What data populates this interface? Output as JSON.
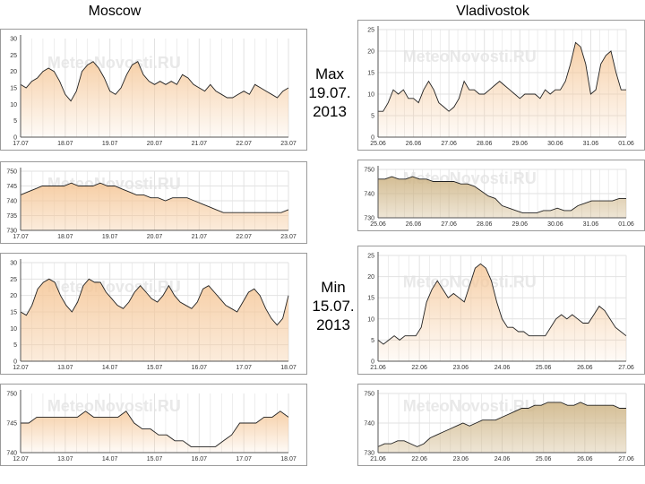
{
  "header": {
    "left_city": "Moscow",
    "right_city": "Vladivostok"
  },
  "labels": {
    "max": [
      "Max",
      "19.07.",
      "2013"
    ],
    "min": [
      "Min",
      "15.07.",
      "2013"
    ]
  },
  "watermark": "MeteoNovosti.RU",
  "colors": {
    "fill_warm": "#f5c89a",
    "fill_tan": "#cfb688",
    "line": "#222222",
    "grid": "#e2e2e2"
  },
  "chart_data": [
    {
      "id": "moscow-max-temp",
      "type": "area",
      "xticks": [
        "17.07",
        "18.07",
        "19.07",
        "20.07",
        "21.07",
        "22.07",
        "23.07"
      ],
      "yticks": [
        0,
        5,
        10,
        15,
        20,
        25,
        30
      ],
      "ylim": [
        0,
        30
      ],
      "values": [
        16,
        15,
        17,
        18,
        20,
        21,
        20,
        17,
        13,
        11,
        14,
        20,
        22,
        23,
        21,
        18,
        14,
        13,
        15,
        19,
        22,
        23,
        19,
        17,
        16,
        17,
        16,
        17,
        16,
        19,
        18,
        16,
        15,
        14,
        16,
        14,
        13,
        12,
        12,
        13,
        14,
        13,
        16,
        15,
        14,
        13,
        12,
        14,
        15
      ]
    },
    {
      "id": "moscow-max-pressure",
      "type": "area",
      "xticks": [
        "17.07",
        "18.07",
        "19.07",
        "20.07",
        "21.07",
        "22.07",
        "23.07"
      ],
      "yticks": [
        730,
        735,
        740,
        745,
        750
      ],
      "ylim": [
        730,
        750
      ],
      "values": [
        742,
        743,
        744,
        745,
        745,
        745,
        745,
        746,
        745,
        745,
        745,
        746,
        745,
        745,
        744,
        743,
        742,
        742,
        741,
        741,
        740,
        741,
        741,
        741,
        740,
        739,
        738,
        737,
        736,
        736,
        736,
        736,
        736,
        736,
        736,
        736,
        736,
        737
      ]
    },
    {
      "id": "vladivostok-max-temp",
      "type": "area",
      "xticks": [
        "25.06",
        "26.06",
        "27.06",
        "28.06",
        "29.06",
        "30.06",
        "31.06",
        "01.06"
      ],
      "yticks": [
        0,
        5,
        10,
        15,
        20,
        25
      ],
      "ylim": [
        0,
        25
      ],
      "values": [
        6,
        6,
        8,
        11,
        10,
        11,
        9,
        9,
        8,
        11,
        13,
        11,
        8,
        7,
        6,
        7,
        9,
        13,
        11,
        11,
        10,
        10,
        11,
        12,
        13,
        12,
        11,
        10,
        9,
        10,
        10,
        10,
        9,
        11,
        10,
        11,
        11,
        13,
        17,
        22,
        21,
        17,
        10,
        11,
        17,
        19,
        20,
        15,
        11,
        11
      ]
    },
    {
      "id": "vladivostok-max-pressure",
      "type": "area",
      "xticks": [
        "25.06",
        "26.06",
        "27.06",
        "28.06",
        "29.06",
        "30.06",
        "31.06",
        "01.06"
      ],
      "yticks": [
        730,
        740,
        750
      ],
      "ylim": [
        730,
        750
      ],
      "values": [
        746,
        746,
        747,
        746,
        746,
        747,
        746,
        746,
        745,
        745,
        745,
        745,
        744,
        744,
        743,
        741,
        739,
        738,
        735,
        734,
        733,
        732,
        732,
        732,
        733,
        733,
        734,
        733,
        733,
        735,
        736,
        737,
        737,
        737,
        737,
        738,
        738
      ]
    },
    {
      "id": "moscow-min-temp",
      "type": "area",
      "xticks": [
        "12.07",
        "13.07",
        "14.07",
        "15.07",
        "16.07",
        "17.07",
        "18.07"
      ],
      "yticks": [
        0,
        5,
        10,
        15,
        20,
        25,
        30
      ],
      "ylim": [
        0,
        30
      ],
      "values": [
        15,
        14,
        17,
        22,
        24,
        25,
        24,
        20,
        17,
        15,
        18,
        23,
        25,
        24,
        24,
        21,
        19,
        17,
        16,
        18,
        21,
        23,
        21,
        19,
        18,
        20,
        23,
        20,
        18,
        17,
        16,
        18,
        22,
        23,
        21,
        19,
        17,
        16,
        15,
        18,
        21,
        22,
        20,
        16,
        13,
        11,
        13,
        20
      ]
    },
    {
      "id": "moscow-min-pressure",
      "type": "area",
      "xticks": [
        "12.07",
        "13.07",
        "14.07",
        "15.07",
        "16.07",
        "17.07",
        "18.07"
      ],
      "yticks": [
        740,
        745,
        750
      ],
      "ylim": [
        740,
        750
      ],
      "values": [
        745,
        745,
        746,
        746,
        746,
        746,
        746,
        746,
        747,
        746,
        746,
        746,
        746,
        747,
        745,
        744,
        744,
        743,
        743,
        742,
        742,
        741,
        741,
        741,
        741,
        742,
        743,
        745,
        745,
        745,
        746,
        746,
        747,
        746
      ]
    },
    {
      "id": "vladivostok-min-temp",
      "type": "area",
      "xticks": [
        "21.06",
        "22.06",
        "23.06",
        "24.06",
        "25.06",
        "26.06",
        "27.06"
      ],
      "yticks": [
        0,
        5,
        10,
        15,
        20,
        25
      ],
      "ylim": [
        0,
        25
      ],
      "values": [
        5,
        4,
        5,
        6,
        5,
        6,
        6,
        6,
        8,
        14,
        17,
        19,
        17,
        15,
        16,
        15,
        14,
        18,
        22,
        23,
        22,
        19,
        14,
        10,
        8,
        8,
        7,
        7,
        6,
        6,
        6,
        6,
        8,
        10,
        11,
        10,
        11,
        10,
        9,
        9,
        11,
        13,
        12,
        10,
        8,
        7,
        6
      ]
    },
    {
      "id": "vladivostok-min-pressure",
      "type": "area",
      "xticks": [
        "21.06",
        "22.06",
        "23.06",
        "24.06",
        "25.06",
        "26.06",
        "27.06"
      ],
      "yticks": [
        730,
        740,
        750
      ],
      "ylim": [
        730,
        750
      ],
      "values": [
        732,
        733,
        733,
        734,
        734,
        733,
        732,
        733,
        735,
        736,
        737,
        738,
        739,
        740,
        739,
        740,
        741,
        741,
        741,
        742,
        743,
        744,
        745,
        745,
        746,
        746,
        747,
        747,
        747,
        746,
        746,
        747,
        746,
        746,
        746,
        746,
        746,
        745,
        745
      ]
    }
  ]
}
